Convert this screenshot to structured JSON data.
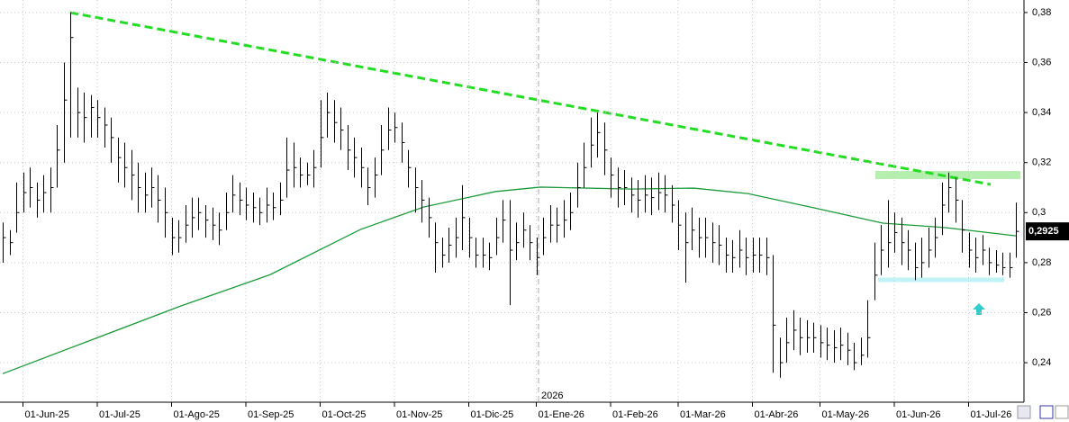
{
  "chart_data": {
    "type": "ohlc",
    "color": "#000000",
    "grid": true,
    "ylim": [
      0.2242,
      0.385
    ],
    "yticks": [
      {
        "value": 0.24,
        "label": "0,24"
      },
      {
        "value": 0.26,
        "label": "0,26"
      },
      {
        "value": 0.28,
        "label": "0,28"
      },
      {
        "value": 0.3,
        "label": "0,3"
      },
      {
        "value": 0.32,
        "label": "0,32"
      },
      {
        "value": 0.34,
        "label": "0,34"
      },
      {
        "value": 0.36,
        "label": "0,36"
      },
      {
        "value": 0.38,
        "label": "0,38"
      }
    ],
    "xlim": [
      -0.4,
      151.2
    ],
    "xticks": [
      {
        "value": 3,
        "label": "01-Jun-25"
      },
      {
        "value": 14,
        "label": "01-Jul-25"
      },
      {
        "value": 25,
        "label": "01-Ago-25"
      },
      {
        "value": 36,
        "label": "01-Sep-25"
      },
      {
        "value": 47,
        "label": "01-Oct-25"
      },
      {
        "value": 58,
        "label": "01-Nov-25"
      },
      {
        "value": 69,
        "label": "01-Dic-25"
      },
      {
        "value": 79,
        "label": "01-Ene-26"
      },
      {
        "value": 90,
        "label": "01-Feb-26"
      },
      {
        "value": 100,
        "label": "01-Mar-26"
      },
      {
        "value": 111,
        "label": "01-Abr-26"
      },
      {
        "value": 121,
        "label": "01-May-26"
      },
      {
        "value": 132,
        "label": "01-Jun-26"
      },
      {
        "value": 143,
        "label": "01-Jul-26"
      }
    ],
    "year_label": "2026",
    "high": [
      0.296,
      0.293,
      0.312,
      0.316,
      0.318,
      0.312,
      0.315,
      0.318,
      0.335,
      0.36,
      0.38,
      0.35,
      0.348,
      0.347,
      0.345,
      0.342,
      0.338,
      0.33,
      0.328,
      0.325,
      0.32,
      0.316,
      0.318,
      0.315,
      0.31,
      0.298,
      0.297,
      0.303,
      0.306,
      0.306,
      0.303,
      0.302,
      0.3,
      0.308,
      0.315,
      0.312,
      0.31,
      0.308,
      0.306,
      0.31,
      0.308,
      0.312,
      0.33,
      0.328,
      0.322,
      0.32,
      0.325,
      0.345,
      0.348,
      0.345,
      0.342,
      0.335,
      0.33,
      0.326,
      0.318,
      0.322,
      0.335,
      0.342,
      0.34,
      0.336,
      0.325,
      0.318,
      0.313,
      0.306,
      0.296,
      0.29,
      0.294,
      0.298,
      0.311,
      0.298,
      0.29,
      0.29,
      0.288,
      0.298,
      0.305,
      0.305,
      0.296,
      0.3,
      0.295,
      0.29,
      0.298,
      0.303,
      0.302,
      0.305,
      0.308,
      0.32,
      0.328,
      0.338,
      0.34,
      0.336,
      0.322,
      0.318,
      0.317,
      0.314,
      0.313,
      0.315,
      0.314,
      0.316,
      0.315,
      0.311,
      0.305,
      0.3,
      0.302,
      0.298,
      0.298,
      0.296,
      0.295,
      0.29,
      0.289,
      0.293,
      0.29,
      0.29,
      0.29,
      0.29,
      0.283,
      0.25,
      0.258,
      0.261,
      0.258,
      0.257,
      0.256,
      0.255,
      0.254,
      0.253,
      0.254,
      0.252,
      0.248,
      0.25,
      0.265,
      0.288,
      0.295,
      0.305,
      0.3,
      0.298,
      0.293,
      0.288,
      0.29,
      0.294,
      0.298,
      0.312,
      0.316,
      0.314,
      0.305,
      0.292,
      0.29,
      0.291,
      0.286,
      0.285,
      0.284,
      0.284,
      0.304
    ],
    "low": [
      0.28,
      0.283,
      0.292,
      0.3,
      0.302,
      0.298,
      0.3,
      0.3,
      0.31,
      0.32,
      0.33,
      0.33,
      0.328,
      0.33,
      0.33,
      0.326,
      0.32,
      0.312,
      0.31,
      0.305,
      0.3,
      0.3,
      0.302,
      0.296,
      0.29,
      0.283,
      0.284,
      0.288,
      0.29,
      0.293,
      0.29,
      0.289,
      0.287,
      0.293,
      0.3,
      0.299,
      0.297,
      0.296,
      0.295,
      0.296,
      0.297,
      0.299,
      0.306,
      0.31,
      0.31,
      0.311,
      0.31,
      0.318,
      0.33,
      0.328,
      0.325,
      0.317,
      0.314,
      0.31,
      0.303,
      0.306,
      0.315,
      0.325,
      0.328,
      0.32,
      0.31,
      0.3,
      0.296,
      0.29,
      0.276,
      0.278,
      0.28,
      0.282,
      0.285,
      0.282,
      0.278,
      0.278,
      0.277,
      0.283,
      0.288,
      0.263,
      0.281,
      0.286,
      0.281,
      0.275,
      0.283,
      0.288,
      0.288,
      0.29,
      0.293,
      0.302,
      0.31,
      0.318,
      0.322,
      0.315,
      0.306,
      0.302,
      0.303,
      0.3,
      0.298,
      0.3,
      0.299,
      0.301,
      0.3,
      0.296,
      0.285,
      0.272,
      0.285,
      0.282,
      0.282,
      0.28,
      0.279,
      0.276,
      0.276,
      0.278,
      0.275,
      0.276,
      0.276,
      0.275,
      0.236,
      0.234,
      0.24,
      0.245,
      0.243,
      0.244,
      0.244,
      0.242,
      0.241,
      0.24,
      0.241,
      0.239,
      0.237,
      0.239,
      0.242,
      0.265,
      0.275,
      0.278,
      0.284,
      0.279,
      0.277,
      0.273,
      0.274,
      0.278,
      0.282,
      0.291,
      0.3,
      0.296,
      0.284,
      0.278,
      0.276,
      0.279,
      0.275,
      0.276,
      0.275,
      0.274,
      0.282
    ],
    "close": [
      0.29,
      0.288,
      0.3,
      0.308,
      0.31,
      0.305,
      0.308,
      0.31,
      0.325,
      0.345,
      0.37,
      0.34,
      0.338,
      0.342,
      0.338,
      0.335,
      0.33,
      0.322,
      0.318,
      0.315,
      0.31,
      0.307,
      0.31,
      0.305,
      0.3,
      0.29,
      0.29,
      0.295,
      0.298,
      0.3,
      0.297,
      0.295,
      0.293,
      0.3,
      0.307,
      0.305,
      0.303,
      0.302,
      0.3,
      0.303,
      0.302,
      0.305,
      0.317,
      0.318,
      0.315,
      0.315,
      0.318,
      0.33,
      0.34,
      0.336,
      0.333,
      0.325,
      0.322,
      0.318,
      0.31,
      0.315,
      0.325,
      0.333,
      0.334,
      0.328,
      0.318,
      0.31,
      0.305,
      0.298,
      0.288,
      0.283,
      0.287,
      0.29,
      0.298,
      0.29,
      0.283,
      0.283,
      0.282,
      0.29,
      0.297,
      0.285,
      0.288,
      0.293,
      0.288,
      0.282,
      0.29,
      0.295,
      0.295,
      0.297,
      0.3,
      0.31,
      0.318,
      0.327,
      0.332,
      0.325,
      0.315,
      0.31,
      0.31,
      0.307,
      0.305,
      0.307,
      0.306,
      0.308,
      0.307,
      0.303,
      0.295,
      0.288,
      0.293,
      0.29,
      0.29,
      0.288,
      0.287,
      0.283,
      0.282,
      0.285,
      0.282,
      0.283,
      0.283,
      0.282,
      0.255,
      0.24,
      0.248,
      0.253,
      0.25,
      0.25,
      0.25,
      0.248,
      0.247,
      0.246,
      0.247,
      0.245,
      0.24,
      0.243,
      0.25,
      0.275,
      0.285,
      0.288,
      0.292,
      0.288,
      0.285,
      0.278,
      0.28,
      0.285,
      0.29,
      0.303,
      0.31,
      0.305,
      0.293,
      0.285,
      0.282,
      0.285,
      0.28,
      0.279,
      0.278,
      0.278,
      0.2925
    ],
    "moving_average": {
      "color": "#1a9a3a",
      "x": [
        0,
        26.3,
        39.6,
        53,
        62.3,
        72.9,
        79.6,
        93,
        102.3,
        110.3,
        119.6,
        130.3,
        139.6,
        150
      ],
      "values": [
        0.2356,
        0.2626,
        0.2752,
        0.2933,
        0.3022,
        0.3084,
        0.3102,
        0.3094,
        0.3098,
        0.3076,
        0.3022,
        0.2958,
        0.294,
        0.2907
      ]
    },
    "last_price": {
      "value": 0.2925,
      "label": "0,2925"
    }
  }
}
